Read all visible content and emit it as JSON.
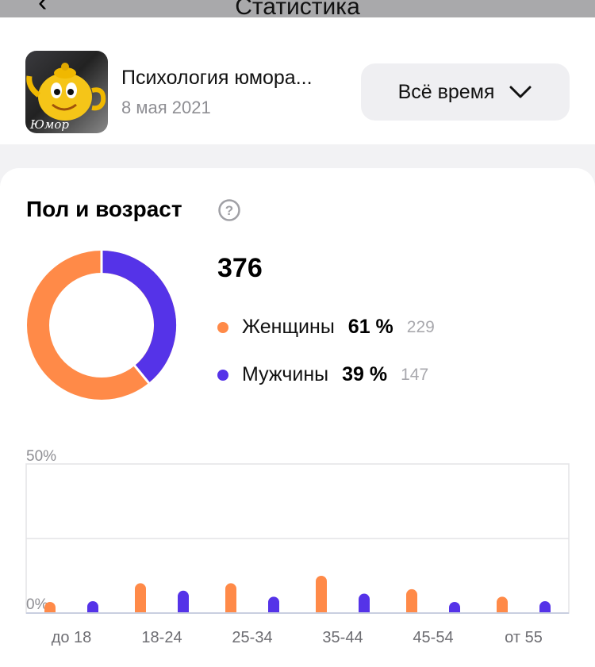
{
  "header": {
    "back_icon": "chevron-left-icon",
    "title": "Статистика"
  },
  "group": {
    "name": "Психология юмора...",
    "date": "8 мая 2021",
    "thumb_caption": "Юмор"
  },
  "period": {
    "label": "Всё время",
    "icon": "chevron-down-icon"
  },
  "section": {
    "title": "Пол и возраст",
    "help_icon": "question-circle-icon"
  },
  "summary": {
    "total": "376",
    "legend": [
      {
        "name": "Женщины",
        "percent": "61 %",
        "count": "229",
        "color": "#ff8a48"
      },
      {
        "name": "Мужчины",
        "percent": "39 %",
        "count": "147",
        "color": "#5533e8"
      }
    ]
  },
  "colors": {
    "female": "#ff8a48",
    "male": "#5533e8",
    "grid": "#e3e3e6",
    "baseline": "#c9cfe0"
  },
  "chart_data": {
    "type": "bar",
    "categories": [
      "до 18",
      "18-24",
      "25-34",
      "35-44",
      "45-54",
      "от 55"
    ],
    "series": [
      {
        "name": "Женщины",
        "values": [
          1.5,
          10,
          10,
          12.5,
          8,
          5.5
        ]
      },
      {
        "name": "Мужчины",
        "values": [
          4,
          7.5,
          5.5,
          6.5,
          3.5,
          4
        ]
      }
    ],
    "y_tick_labels": [
      "0%",
      "50%"
    ],
    "ylim": [
      0,
      50
    ],
    "grid": true
  }
}
